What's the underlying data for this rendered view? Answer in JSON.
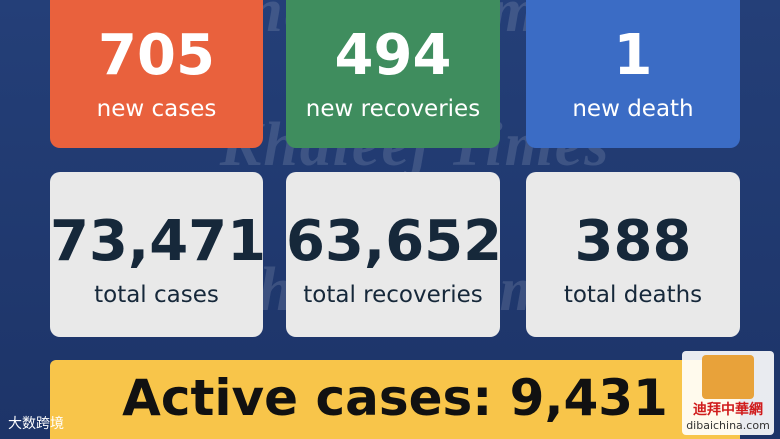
{
  "watermark": "Khaleej Times",
  "daily": [
    {
      "number": "705",
      "label": "new cases"
    },
    {
      "number": "494",
      "label": "new recoveries"
    },
    {
      "number": "1",
      "label": "new death"
    }
  ],
  "totals": [
    {
      "number": "73,471",
      "label": "total cases"
    },
    {
      "number": "63,652",
      "label": "total recoveries"
    },
    {
      "number": "388",
      "label": "total deaths"
    }
  ],
  "active": "Active cases: 9,431",
  "corner_left": "大数跨境",
  "corner_right": {
    "name": "迪拜中華網",
    "url": "dibaichina.com"
  }
}
